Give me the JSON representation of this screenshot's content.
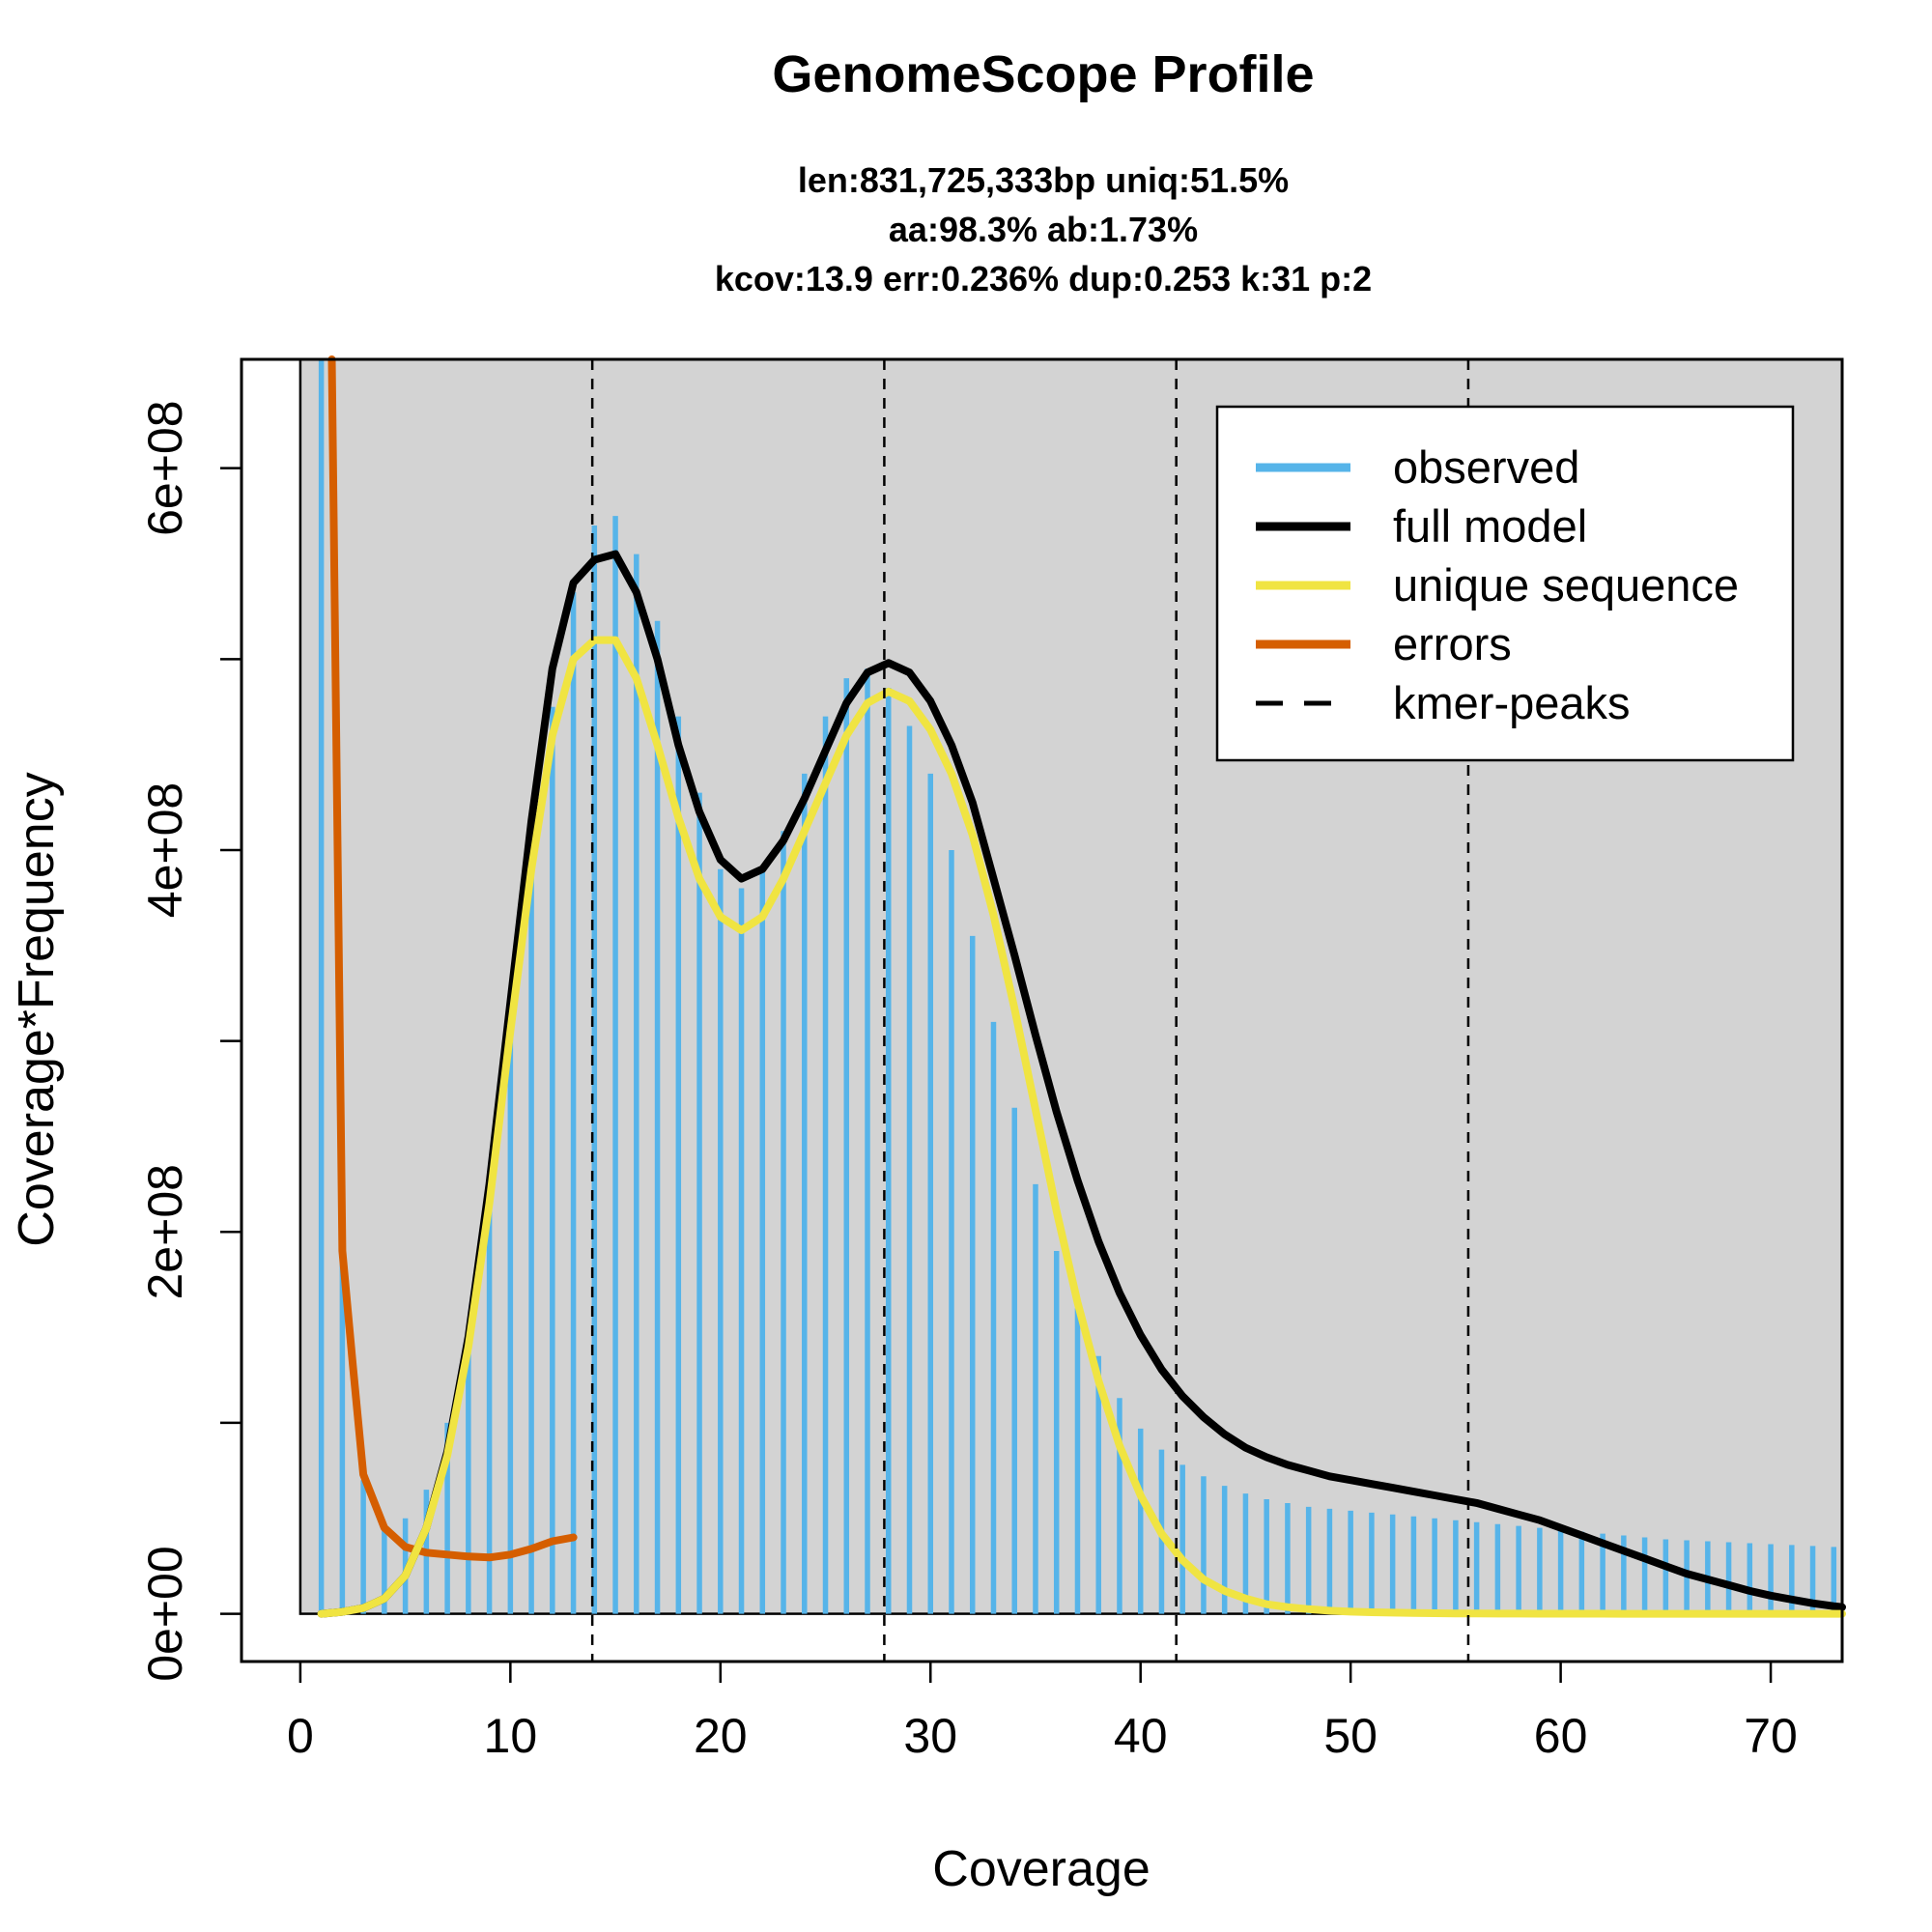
{
  "chart_data": {
    "type": "bar",
    "title": "GenomeScope Profile",
    "subtitle_lines": [
      "len:831,725,333bp uniq:51.5%",
      "aa:98.3% ab:1.73%",
      "kcov:13.9 err:0.236%  dup:0.253  k:31 p:2"
    ],
    "xlabel": "Coverage",
    "ylabel": "Coverage*Frequency",
    "xlim": [
      -2.8,
      73.4
    ],
    "ylim": [
      -25000000.0,
      657000000.0
    ],
    "x_ticks": [
      0,
      10,
      20,
      30,
      40,
      50,
      60,
      70
    ],
    "x_tick_labels": [
      "0",
      "10",
      "20",
      "30",
      "40",
      "50",
      "60",
      "70"
    ],
    "y_ticks": [
      0,
      100000000,
      200000000,
      300000000,
      400000000,
      500000000,
      600000000
    ],
    "y_tick_labels": [
      "0e+00",
      "",
      "2e+08",
      "",
      "4e+08",
      "",
      "6e+08"
    ],
    "grid": false,
    "colors": {
      "panel_background": "#d3d3d3",
      "observed": "#56b4e9",
      "full_model": "#000000",
      "unique_sequence": "#f0e442",
      "errors": "#d55e00",
      "kmer_peaks": "#000000"
    },
    "legend": {
      "placement": "top-right",
      "entries": [
        "observed",
        "full model",
        "unique sequence",
        "errors",
        "kmer-peaks"
      ]
    },
    "observed": {
      "x": [
        1,
        2,
        3,
        4,
        5,
        6,
        7,
        8,
        9,
        10,
        11,
        12,
        13,
        14,
        15,
        16,
        17,
        18,
        19,
        20,
        21,
        22,
        23,
        24,
        25,
        26,
        27,
        28,
        29,
        30,
        31,
        32,
        33,
        34,
        35,
        36,
        37,
        38,
        39,
        40,
        41,
        42,
        43,
        44,
        45,
        46,
        47,
        48,
        49,
        50,
        51,
        52,
        53,
        54,
        55,
        56,
        57,
        58,
        59,
        60,
        61,
        62,
        63,
        64,
        65,
        66,
        67,
        68,
        69,
        70,
        71,
        72,
        73
      ],
      "values": [
        660000000,
        185000000,
        70000000,
        45000000,
        50000000,
        65000000,
        100000000,
        145000000,
        225000000,
        310000000,
        395000000,
        475000000,
        535000000,
        570000000,
        575000000,
        555000000,
        520000000,
        470000000,
        430000000,
        390000000,
        380000000,
        390000000,
        410000000,
        440000000,
        470000000,
        490000000,
        495000000,
        485000000,
        465000000,
        440000000,
        400000000,
        355000000,
        310000000,
        265000000,
        225000000,
        190000000,
        160000000,
        135000000,
        113000000,
        97000000,
        86000000,
        78000000,
        72000000,
        67000000,
        63000000,
        60000000,
        58000000,
        56000000,
        55000000,
        54000000,
        53000000,
        52000000,
        51000000,
        50000000,
        49000000,
        48000000,
        47000000,
        46000000,
        45000000,
        44000000,
        43000000,
        42000000,
        41000000,
        40000000,
        39000000,
        38500000,
        38000000,
        37500000,
        37000000,
        36500000,
        36000000,
        35500000,
        35000000
      ]
    },
    "series": [
      {
        "name": "full model",
        "x": [
          1,
          2,
          3,
          4,
          5,
          6,
          7,
          8,
          9,
          10,
          11,
          12,
          13,
          14,
          15,
          16,
          17,
          18,
          19,
          20,
          21,
          22,
          23,
          24,
          25,
          26,
          27,
          28,
          29,
          30,
          31,
          32,
          33,
          34,
          35,
          36,
          37,
          38,
          39,
          40,
          41,
          42,
          43,
          44,
          45,
          46,
          47,
          48,
          49,
          50,
          51,
          52,
          53,
          54,
          55,
          56,
          57,
          58,
          59,
          60,
          61,
          62,
          63,
          64,
          65,
          66,
          67,
          68,
          69,
          70,
          71,
          72,
          73,
          73.4
        ],
        "values": [
          0,
          1000000,
          3000000,
          8000000,
          20000000,
          45000000,
          85000000,
          145000000,
          225000000,
          320000000,
          415000000,
          495000000,
          540000000,
          552000000,
          555000000,
          535000000,
          500000000,
          455000000,
          420000000,
          395000000,
          385000000,
          390000000,
          405000000,
          427000000,
          452000000,
          477000000,
          493000000,
          498000000,
          493000000,
          478000000,
          455000000,
          425000000,
          385000000,
          345000000,
          303000000,
          263000000,
          227000000,
          195000000,
          168000000,
          146000000,
          128000000,
          114000000,
          103000000,
          94000000,
          87000000,
          82000000,
          78000000,
          75000000,
          72000000,
          70000000,
          68000000,
          66000000,
          64000000,
          62000000,
          60000000,
          58000000,
          55000000,
          52000000,
          49000000,
          45000000,
          41000000,
          37000000,
          33000000,
          29000000,
          25000000,
          21000000,
          18000000,
          15000000,
          12000000,
          9500000,
          7500000,
          5500000,
          4000000,
          3500000
        ]
      },
      {
        "name": "unique sequence",
        "x": [
          1,
          2,
          3,
          4,
          5,
          6,
          7,
          8,
          9,
          10,
          11,
          12,
          13,
          14,
          15,
          16,
          17,
          18,
          19,
          20,
          21,
          22,
          23,
          24,
          25,
          26,
          27,
          28,
          29,
          30,
          31,
          32,
          33,
          34,
          35,
          36,
          37,
          38,
          39,
          40,
          41,
          42,
          43,
          44,
          45,
          46,
          47,
          48,
          49,
          50,
          51,
          52,
          53,
          54,
          55,
          56,
          57,
          58,
          59,
          60,
          61,
          62,
          63,
          64,
          65,
          66,
          67,
          68,
          69,
          70,
          71,
          72,
          73,
          73.4
        ],
        "values": [
          0,
          1000000,
          3000000,
          8000000,
          20000000,
          45000000,
          83000000,
          140000000,
          215000000,
          305000000,
          390000000,
          460000000,
          500000000,
          510000000,
          510000000,
          490000000,
          455000000,
          417000000,
          385000000,
          365000000,
          358000000,
          365000000,
          385000000,
          410000000,
          435000000,
          460000000,
          477000000,
          483000000,
          478000000,
          463000000,
          440000000,
          408000000,
          366000000,
          317000000,
          264000000,
          211000000,
          163000000,
          122000000,
          88000000,
          62000000,
          42000000,
          28000000,
          18000000,
          12000000,
          8000000,
          5000000,
          3500000,
          2400000,
          1600000,
          1100000,
          800000,
          600000,
          400000,
          300000,
          200000,
          150000,
          100000,
          80000,
          60000,
          40000,
          30000,
          20000,
          15000,
          10000,
          8000,
          6000,
          5000,
          4000,
          3000,
          2000,
          1500,
          1000,
          800,
          800
        ]
      },
      {
        "name": "errors",
        "x": [
          1.5,
          2,
          2.5,
          3,
          4,
          5,
          6,
          7,
          8,
          9,
          10,
          11,
          12,
          13
        ],
        "values": [
          657000000,
          190000000,
          130000000,
          73000000,
          45000000,
          35000000,
          32000000,
          31000000,
          30000000,
          29500000,
          31000000,
          34000000,
          38000000,
          40000000
        ]
      }
    ],
    "kmer_peaks": [
      13.9,
      27.8,
      41.7,
      55.6
    ]
  }
}
